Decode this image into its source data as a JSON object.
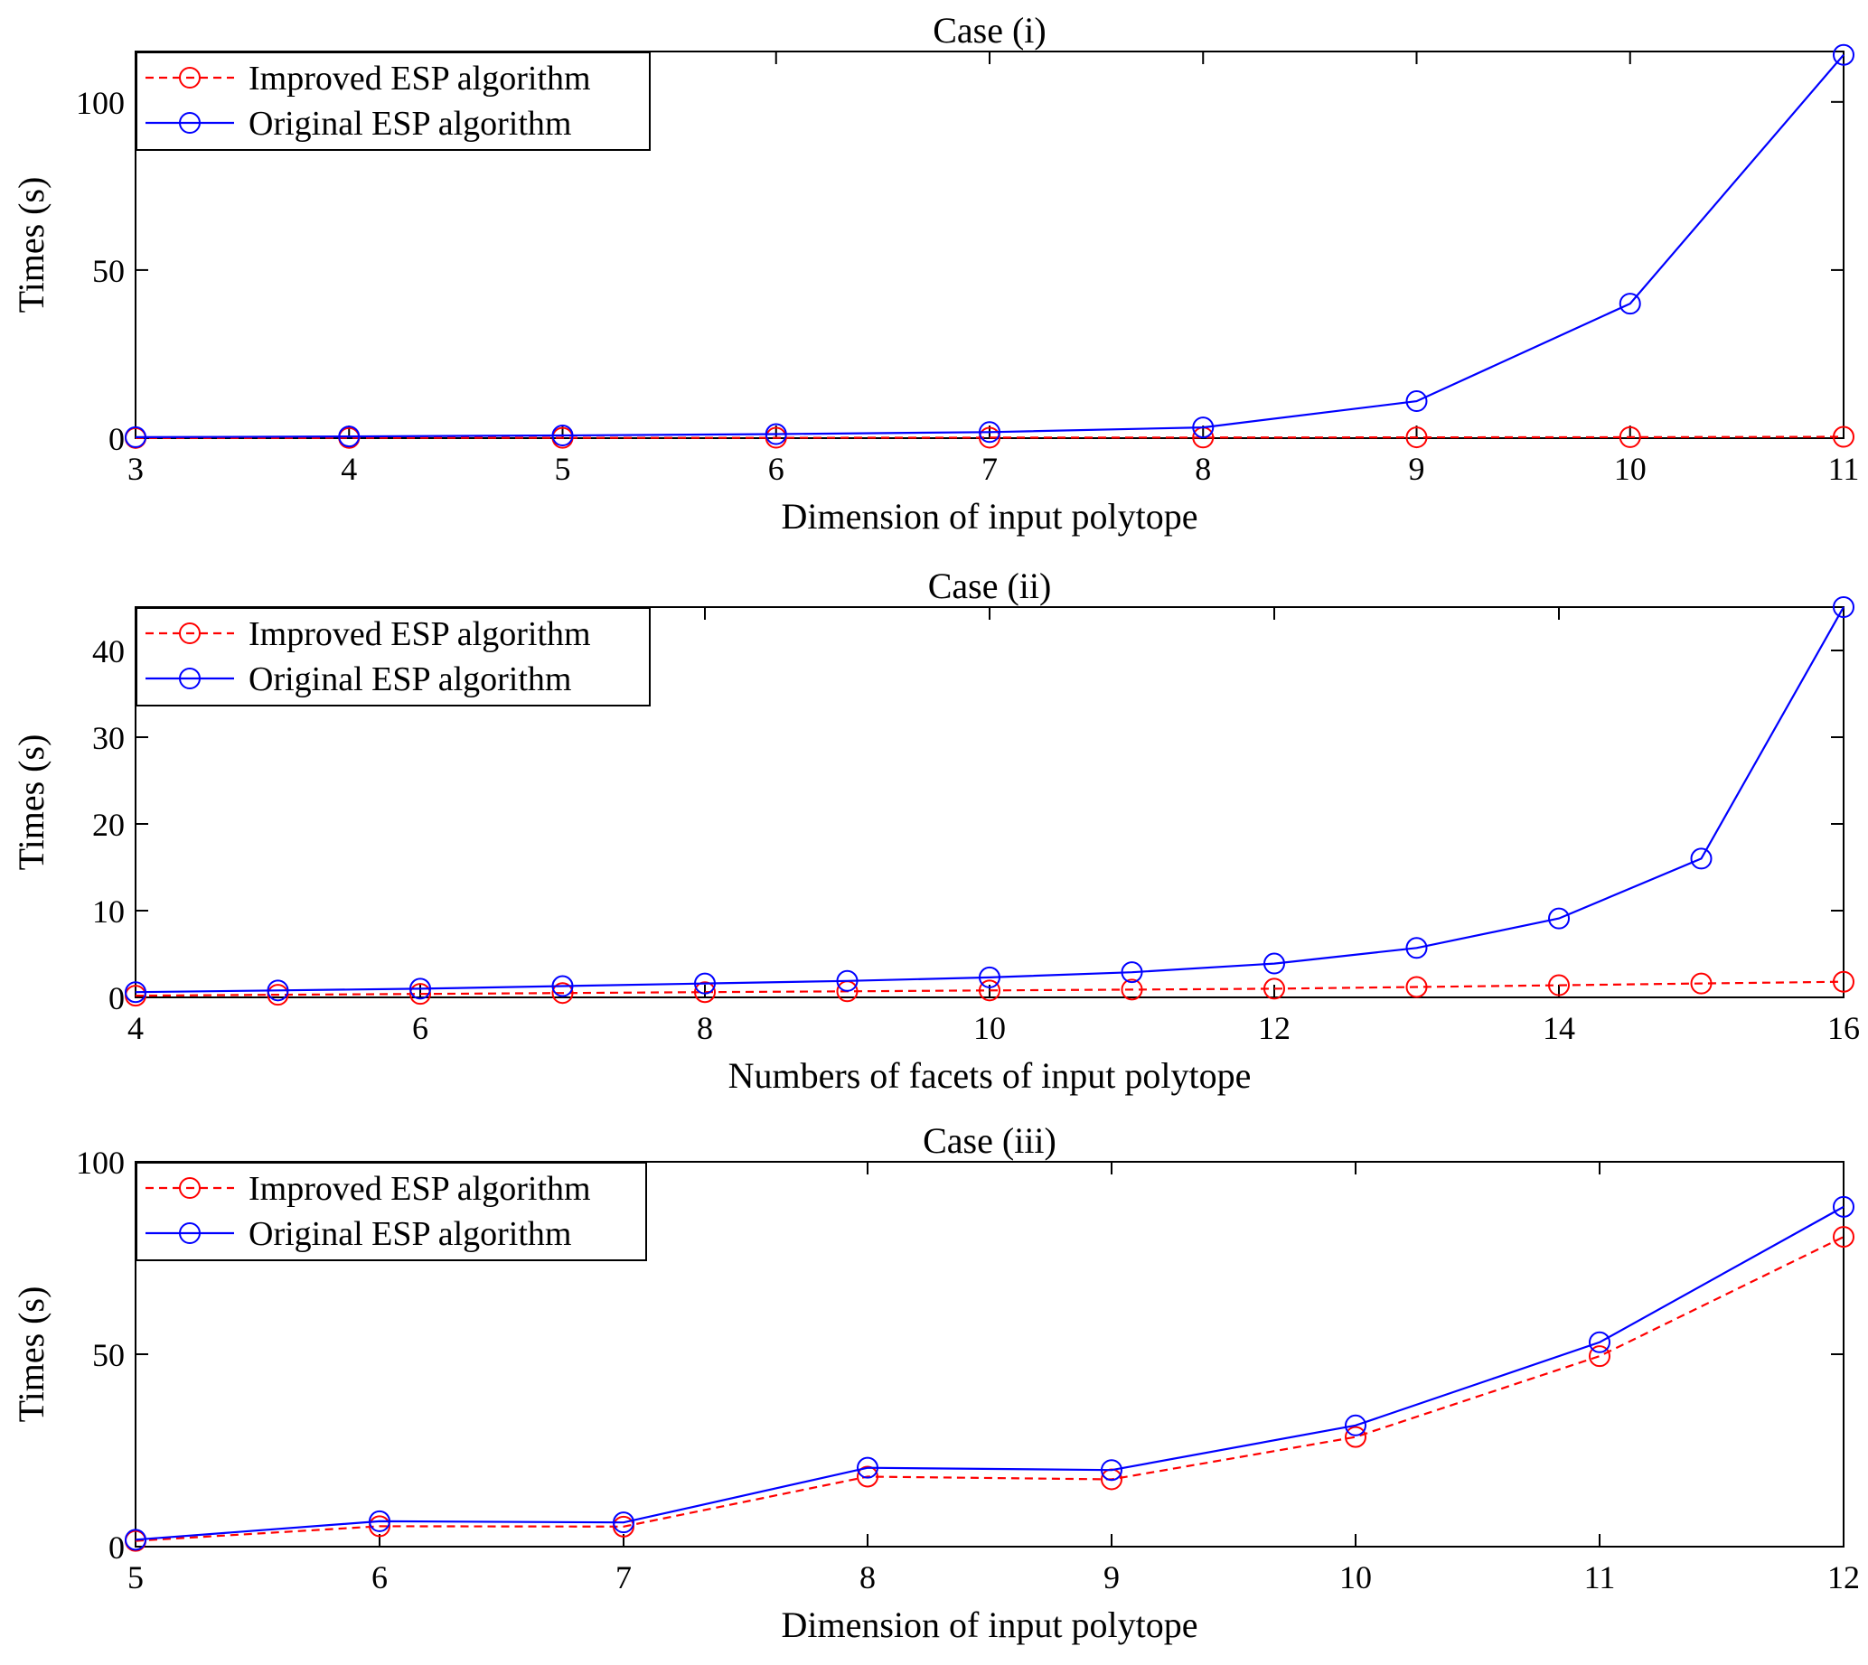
{
  "chart_data": [
    {
      "type": "line",
      "title": "Case (i)",
      "xlabel": "Dimension of input polytope",
      "ylabel": "Times (s)",
      "xlim": [
        3,
        11
      ],
      "ylim": [
        0,
        115
      ],
      "xticks": [
        3,
        4,
        5,
        6,
        7,
        8,
        9,
        10,
        11
      ],
      "yticks": [
        0,
        50,
        100
      ],
      "grid": false,
      "legend_position": "top-left",
      "x": [
        3,
        4,
        5,
        6,
        7,
        8,
        9,
        10,
        11
      ],
      "series": [
        {
          "name": "Improved ESP algorithm",
          "color": "#ff0000",
          "line_style": "dashed",
          "marker": "circle",
          "values": [
            0.05,
            0.08,
            0.1,
            0.12,
            0.15,
            0.2,
            0.25,
            0.3,
            0.4
          ]
        },
        {
          "name": "Original ESP algorithm",
          "color": "#0000ff",
          "line_style": "solid",
          "marker": "circle",
          "values": [
            0.3,
            0.5,
            0.8,
            1.2,
            1.8,
            3.2,
            11,
            40,
            114
          ]
        }
      ]
    },
    {
      "type": "line",
      "title": "Case (ii)",
      "xlabel": "Numbers of facets of input polytope",
      "ylabel": "Times (s)",
      "xlim": [
        4,
        16
      ],
      "ylim": [
        0,
        45
      ],
      "xticks": [
        4,
        6,
        8,
        10,
        12,
        14,
        16
      ],
      "yticks": [
        0,
        10,
        20,
        30,
        40
      ],
      "grid": false,
      "legend_position": "top-left",
      "x": [
        4,
        5,
        6,
        7,
        8,
        9,
        10,
        11,
        12,
        13,
        14,
        15,
        16
      ],
      "series": [
        {
          "name": "Improved ESP algorithm",
          "color": "#ff0000",
          "line_style": "dashed",
          "marker": "circle",
          "values": [
            0.2,
            0.3,
            0.4,
            0.5,
            0.6,
            0.7,
            0.8,
            0.9,
            1.0,
            1.2,
            1.4,
            1.6,
            1.8
          ]
        },
        {
          "name": "Original ESP algorithm",
          "color": "#0000ff",
          "line_style": "solid",
          "marker": "circle",
          "values": [
            0.6,
            0.8,
            1.0,
            1.3,
            1.6,
            1.9,
            2.3,
            2.9,
            3.9,
            5.7,
            9.1,
            16,
            45
          ]
        }
      ]
    },
    {
      "type": "line",
      "title": "Case (iii)",
      "xlabel": "Dimension of input polytope",
      "ylabel": "Times (s)",
      "xlim": [
        5,
        12
      ],
      "ylim": [
        0,
        100
      ],
      "xticks": [
        5,
        6,
        7,
        8,
        9,
        10,
        11,
        12
      ],
      "yticks": [
        0,
        50,
        100
      ],
      "grid": false,
      "legend_position": "top-left",
      "x": [
        5,
        6,
        7,
        8,
        9,
        10,
        11,
        12
      ],
      "series": [
        {
          "name": "Improved ESP algorithm",
          "color": "#ff0000",
          "line_style": "dashed",
          "marker": "circle",
          "values": [
            1.5,
            5.3,
            5.2,
            18.2,
            17.5,
            28.5,
            49.5,
            80.5
          ]
        },
        {
          "name": "Original ESP algorithm",
          "color": "#0000ff",
          "line_style": "solid",
          "marker": "circle",
          "values": [
            1.8,
            6.6,
            6.3,
            20.5,
            19.9,
            31.5,
            53.1,
            88.3
          ]
        }
      ]
    }
  ]
}
